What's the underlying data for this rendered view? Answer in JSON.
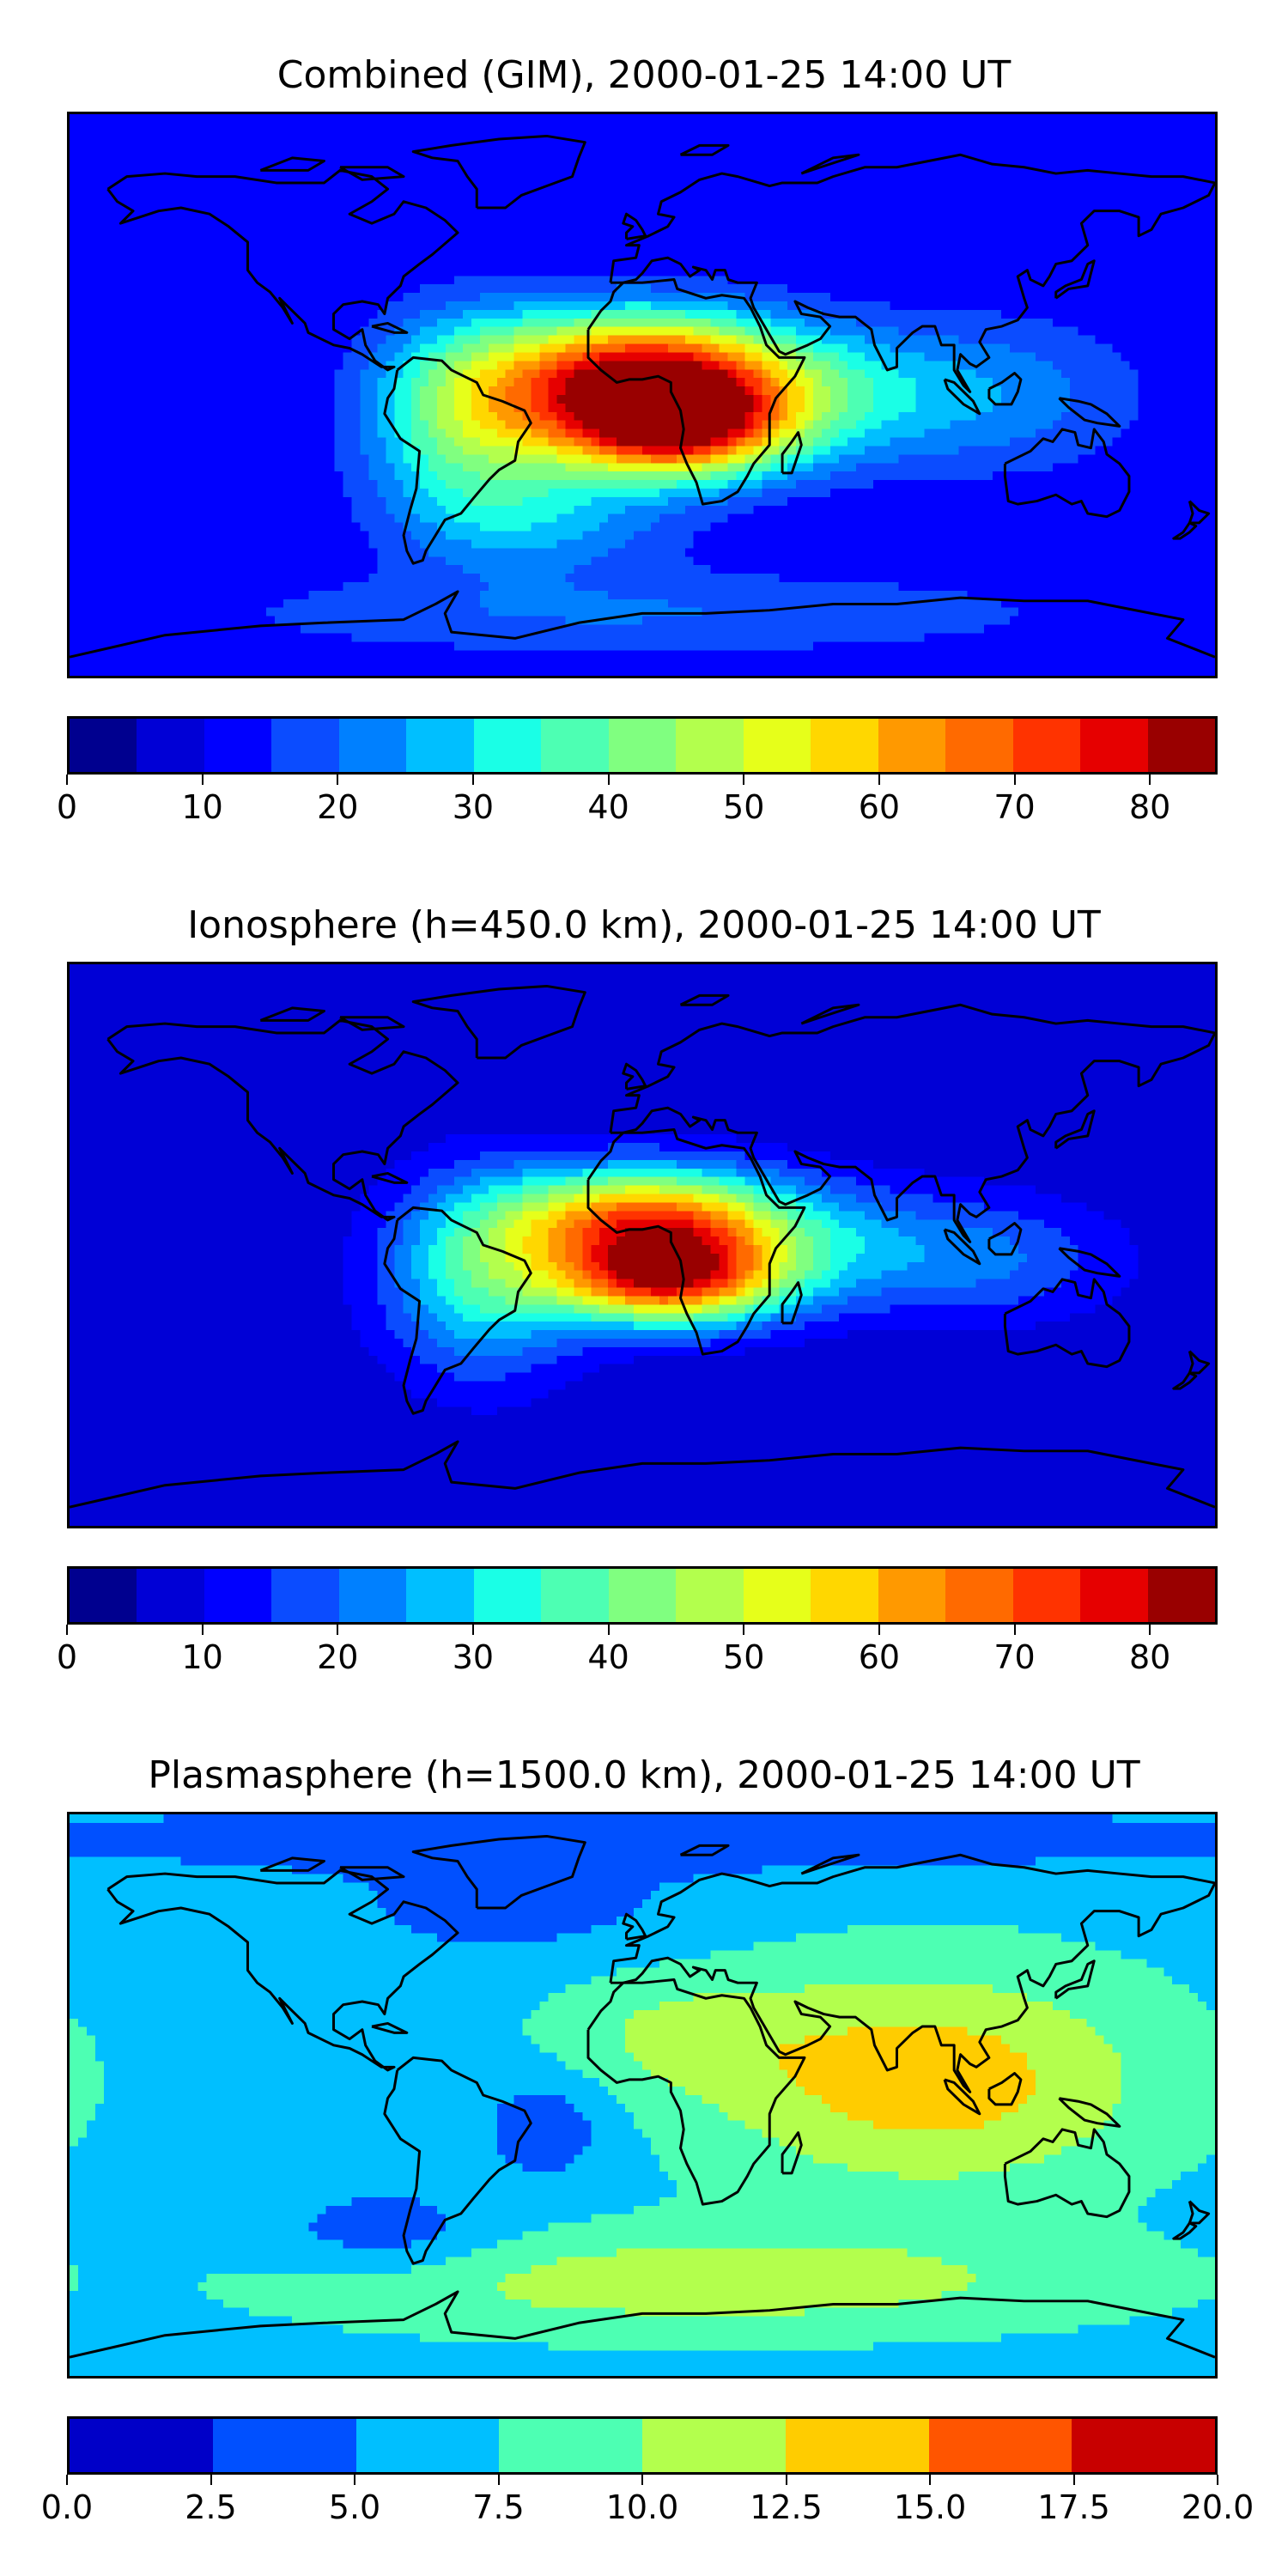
{
  "panels": [
    {
      "title": "Combined (GIM), 2000-01-25 14:00 UT",
      "scale_max": 85,
      "colorbar": {
        "ticks": [
          "0",
          "10",
          "20",
          "30",
          "40",
          "50",
          "60",
          "70",
          "80"
        ],
        "tick_values": [
          0,
          10,
          20,
          30,
          40,
          50,
          60,
          70,
          80
        ],
        "min": 0,
        "max": 85,
        "colors": [
          "#00008f",
          "#0000d6",
          "#0000ff",
          "#0b4cff",
          "#0080ff",
          "#00bfff",
          "#1affe6",
          "#4dffb3",
          "#80ff80",
          "#b3ff4d",
          "#e6ff1a",
          "#ffd700",
          "#ff9900",
          "#ff6a00",
          "#ff3300",
          "#e60000",
          "#990000"
        ]
      },
      "field": {
        "background": 10,
        "blobs": [
          {
            "lat": 7,
            "lon": -2,
            "sx": 32,
            "sy": 14,
            "amp": 55
          },
          {
            "lat": -12,
            "lon": 8,
            "sx": 26,
            "sy": 11,
            "amp": 50
          },
          {
            "lat": -8,
            "lon": -55,
            "sx": 22,
            "sy": 22,
            "amp": 30
          },
          {
            "lat": 0,
            "lon": 30,
            "sx": 40,
            "sy": 15,
            "amp": 25
          },
          {
            "lat": -40,
            "lon": -30,
            "sx": 30,
            "sy": 12,
            "amp": 14
          },
          {
            "lat": 0,
            "lon": 110,
            "sx": 35,
            "sy": 18,
            "amp": 12
          },
          {
            "lat": -70,
            "lon": 0,
            "sx": 100,
            "sy": 10,
            "amp": 10
          }
        ]
      }
    },
    {
      "title": "Ionosphere  (h=450.0 km), 2000-01-25 14:00 UT",
      "scale_max": 85,
      "colorbar": {
        "ticks": [
          "0",
          "10",
          "20",
          "30",
          "40",
          "50",
          "60",
          "70",
          "80"
        ],
        "tick_values": [
          0,
          10,
          20,
          30,
          40,
          50,
          60,
          70,
          80
        ],
        "min": 0,
        "max": 85,
        "colors": [
          "#00008f",
          "#0000d6",
          "#0000ff",
          "#0b4cff",
          "#0080ff",
          "#00bfff",
          "#1affe6",
          "#4dffb3",
          "#80ff80",
          "#b3ff4d",
          "#e6ff1a",
          "#ffd700",
          "#ff9900",
          "#ff6a00",
          "#ff3300",
          "#e60000",
          "#990000"
        ]
      },
      "field": {
        "background": 6,
        "blobs": [
          {
            "lat": 8,
            "lon": 0,
            "sx": 30,
            "sy": 12,
            "amp": 52
          },
          {
            "lat": -12,
            "lon": 8,
            "sx": 25,
            "sy": 10,
            "amp": 55
          },
          {
            "lat": -10,
            "lon": -50,
            "sx": 22,
            "sy": 22,
            "amp": 28
          },
          {
            "lat": 0,
            "lon": 40,
            "sx": 40,
            "sy": 14,
            "amp": 20
          },
          {
            "lat": -5,
            "lon": 110,
            "sx": 30,
            "sy": 14,
            "amp": 12
          }
        ]
      }
    },
    {
      "title": "Plasmasphere (h=1500.0 km), 2000-01-25 14:00 UT",
      "scale_max": 20,
      "colorbar": {
        "ticks": [
          "0.0",
          "2.5",
          "5.0",
          "7.5",
          "10.0",
          "12.5",
          "15.0",
          "17.5",
          "20.0"
        ],
        "tick_values": [
          0,
          2.5,
          5,
          7.5,
          10,
          12.5,
          15,
          17.5,
          20
        ],
        "min": 0,
        "max": 20,
        "colors": [
          "#0000c8",
          "#0050ff",
          "#00bfff",
          "#4dffb3",
          "#b3ff4d",
          "#ffcc00",
          "#ff5500",
          "#c80000"
        ]
      },
      "field": {
        "background": 6.5,
        "blobs": [
          {
            "lat": 5,
            "lon": 90,
            "sx": 50,
            "sy": 25,
            "amp": 7.5
          },
          {
            "lat": -60,
            "lon": 20,
            "sx": 90,
            "sy": 12,
            "amp": 5
          },
          {
            "lat": -10,
            "lon": -30,
            "sx": 14,
            "sy": 12,
            "amp": -3.5
          },
          {
            "lat": -45,
            "lon": -80,
            "sx": 25,
            "sy": 10,
            "amp": -3.5
          },
          {
            "lat": 60,
            "lon": -40,
            "sx": 40,
            "sy": 12,
            "amp": -2.5
          },
          {
            "lat": 82,
            "lon": 0,
            "sx": 180,
            "sy": 8,
            "amp": -3
          },
          {
            "lat": 20,
            "lon": 10,
            "sx": 30,
            "sy": 14,
            "amp": 3
          }
        ]
      }
    }
  ]
}
